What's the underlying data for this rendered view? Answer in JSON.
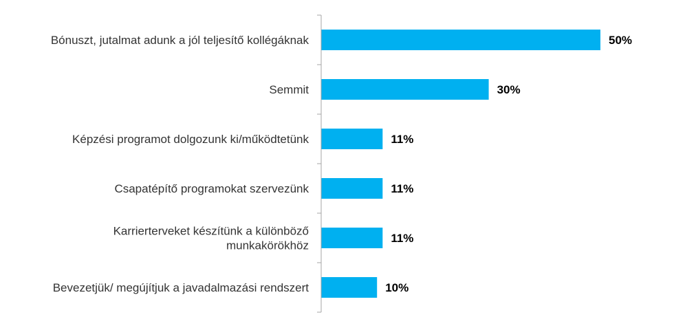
{
  "chart_data": {
    "type": "bar",
    "orientation": "horizontal",
    "categories": [
      [
        "Bónuszt, jutalmat adunk a jól teljesítő kollégáknak"
      ],
      [
        "Semmit"
      ],
      [
        "Képzési programot dolgozunk ki/működtetünk"
      ],
      [
        "Csapatépítő programokat szervezünk"
      ],
      [
        "Karrierterveket készítünk a különböző",
        "munkakörökhöz"
      ],
      [
        "Bevezetjük/ megújítjuk a javadalmazási rendszert"
      ]
    ],
    "values": [
      50,
      30,
      11,
      11,
      11,
      10
    ],
    "value_labels": [
      "50%",
      "30%",
      "11%",
      "11%",
      "11%",
      "10%"
    ],
    "bar_color": "#00b0f0",
    "title": "",
    "xlabel": "",
    "ylabel": "",
    "grid": false,
    "legend": "none"
  }
}
